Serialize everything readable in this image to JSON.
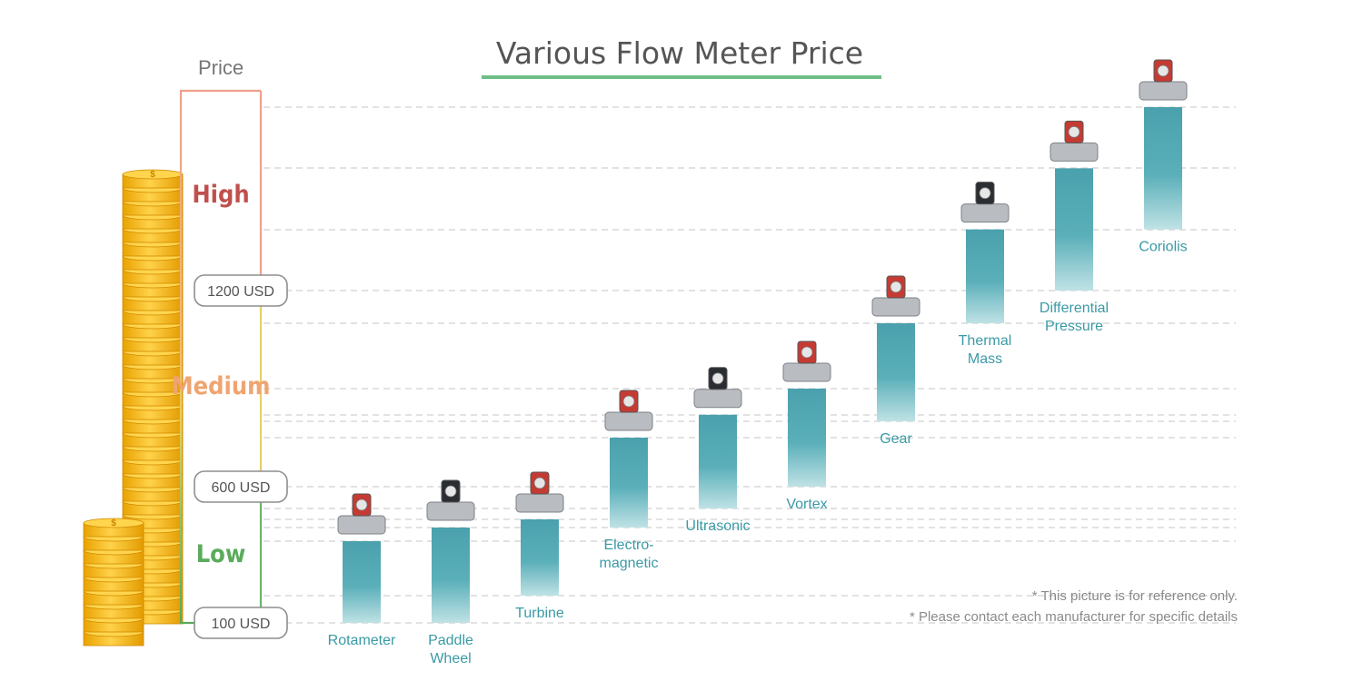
{
  "chart_data": {
    "type": "bar",
    "title": "Various Flow Meter Price",
    "ylabel": "Price",
    "price_levels": [
      {
        "label": "High",
        "color": "#c0504d"
      },
      {
        "label": "Medium",
        "color": "#f0a470"
      },
      {
        "label": "Low",
        "color": "#5aab5a"
      }
    ],
    "price_markers": [
      {
        "label": "1200 USD",
        "value": 1200
      },
      {
        "label": "600 USD",
        "value": 600
      },
      {
        "label": "100 USD",
        "value": 100
      }
    ],
    "series": [
      {
        "values": [
          {
            "label": "Rotameter",
            "low": 100,
            "high": 400
          },
          {
            "label": "Paddle\nWheel",
            "low": 100,
            "high": 450
          },
          {
            "label": "Turbine",
            "low": 200,
            "high": 480
          },
          {
            "label": "Electro-\nmagnetic",
            "low": 450,
            "high": 750
          },
          {
            "label": "Ultrasonic",
            "low": 520,
            "high": 820
          },
          {
            "label": "Vortex",
            "low": 600,
            "high": 900
          },
          {
            "label": "Gear",
            "low": 800,
            "high": 1100
          },
          {
            "label": "Thermal\nMass",
            "low": 1100,
            "high": 1400
          },
          {
            "label": "Differential\nPressure",
            "low": 1200,
            "high": 1600
          },
          {
            "label": "Coriolis",
            "low": 1400,
            "high": 1800
          }
        ]
      }
    ],
    "colors": {
      "bar": "#4da3ae",
      "bar_light": "#a9d6da",
      "label": "#3a9aa6",
      "title_underline": "#6dbf86",
      "grid": "#d8d8d8"
    }
  },
  "notes": [
    "*  This picture is for reference only.",
    "*  Please contact each manufacturer for specific details"
  ]
}
